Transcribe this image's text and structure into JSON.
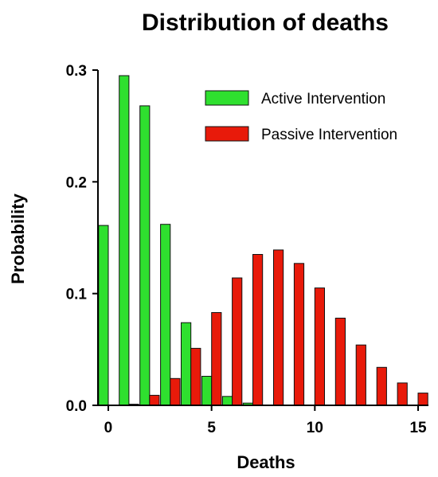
{
  "chart_data": {
    "type": "bar",
    "title": "Distribution of deaths",
    "xlabel": "Deaths",
    "ylabel": "Probability",
    "xlim": [
      -0.5,
      15.5
    ],
    "ylim": [
      0,
      0.3
    ],
    "xticks": [
      0,
      5,
      10,
      15
    ],
    "yticks": [
      "0.0",
      "0.1",
      "0.2",
      "0.3"
    ],
    "grid": false,
    "legend_position": "top-right",
    "x": [
      0,
      1,
      2,
      3,
      4,
      5,
      6,
      7,
      8,
      9,
      10,
      11,
      12,
      13,
      14,
      15
    ],
    "series": [
      {
        "name": "Active Intervention",
        "color": "#2fe02f",
        "values": [
          0.161,
          0.295,
          0.268,
          0.162,
          0.074,
          0.026,
          0.008,
          0.002,
          0,
          0,
          0,
          0,
          0,
          0,
          0,
          0
        ]
      },
      {
        "name": "Passive Intervention",
        "color": "#e81a0a",
        "values": [
          0,
          0.001,
          0.009,
          0.024,
          0.051,
          0.083,
          0.114,
          0.135,
          0.139,
          0.127,
          0.105,
          0.078,
          0.054,
          0.034,
          0.02,
          0.011
        ]
      }
    ]
  }
}
